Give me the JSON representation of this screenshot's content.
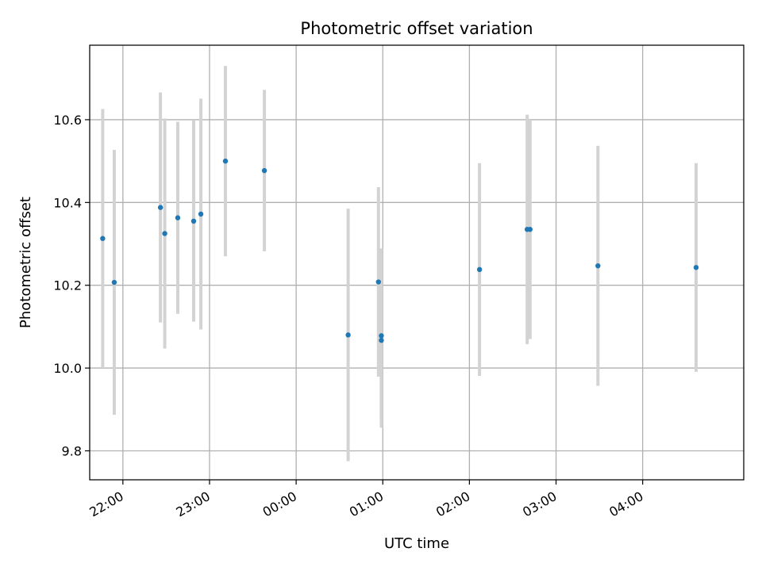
{
  "chart_data": {
    "type": "scatter",
    "title": "Photometric offset variation",
    "xlabel": "UTC time",
    "ylabel": "Photometric offset",
    "grid": true,
    "legend": "none",
    "x_is_datetime": true,
    "xlim": [
      "21:37",
      "05:10"
    ],
    "ylim": [
      9.73,
      10.78
    ],
    "x_ticks": [
      "22:00",
      "23:00",
      "00:00",
      "01:00",
      "02:00",
      "03:00",
      "04:00"
    ],
    "y_ticks": [
      9.8,
      10.0,
      10.2,
      10.4,
      10.6
    ],
    "colors": {
      "point": "#1f77b4",
      "errorbar": "#d3d3d3",
      "grid": "#b0b0b0"
    },
    "series": [
      {
        "points": [
          {
            "x": "21:46",
            "y": 10.313,
            "yerr": 0.313
          },
          {
            "x": "21:54",
            "y": 10.207,
            "yerr": 0.32
          },
          {
            "x": "22:26",
            "y": 10.388,
            "yerr": 0.278
          },
          {
            "x": "22:29",
            "y": 10.325,
            "yerr": 0.278
          },
          {
            "x": "22:38",
            "y": 10.363,
            "yerr": 0.232
          },
          {
            "x": "22:49",
            "y": 10.355,
            "yerr": 0.243
          },
          {
            "x": "22:54",
            "y": 10.372,
            "yerr": 0.279
          },
          {
            "x": "23:11",
            "y": 10.5,
            "yerr": 0.23
          },
          {
            "x": "23:38",
            "y": 10.477,
            "yerr": 0.195
          },
          {
            "x": "00:36",
            "y": 10.08,
            "yerr": 0.305
          },
          {
            "x": "00:57",
            "y": 10.208,
            "yerr": 0.229
          },
          {
            "x": "00:59",
            "y": 10.078,
            "yerr": 0.211
          },
          {
            "x": "00:59",
            "y": 10.067,
            "yerr": 0.211
          },
          {
            "x": "02:07",
            "y": 10.238,
            "yerr": 0.257
          },
          {
            "x": "02:40",
            "y": 10.335,
            "yerr": 0.277
          },
          {
            "x": "02:42",
            "y": 10.335,
            "yerr": 0.265
          },
          {
            "x": "03:29",
            "y": 10.247,
            "yerr": 0.29
          },
          {
            "x": "04:37",
            "y": 10.243,
            "yerr": 0.252
          }
        ]
      }
    ]
  }
}
